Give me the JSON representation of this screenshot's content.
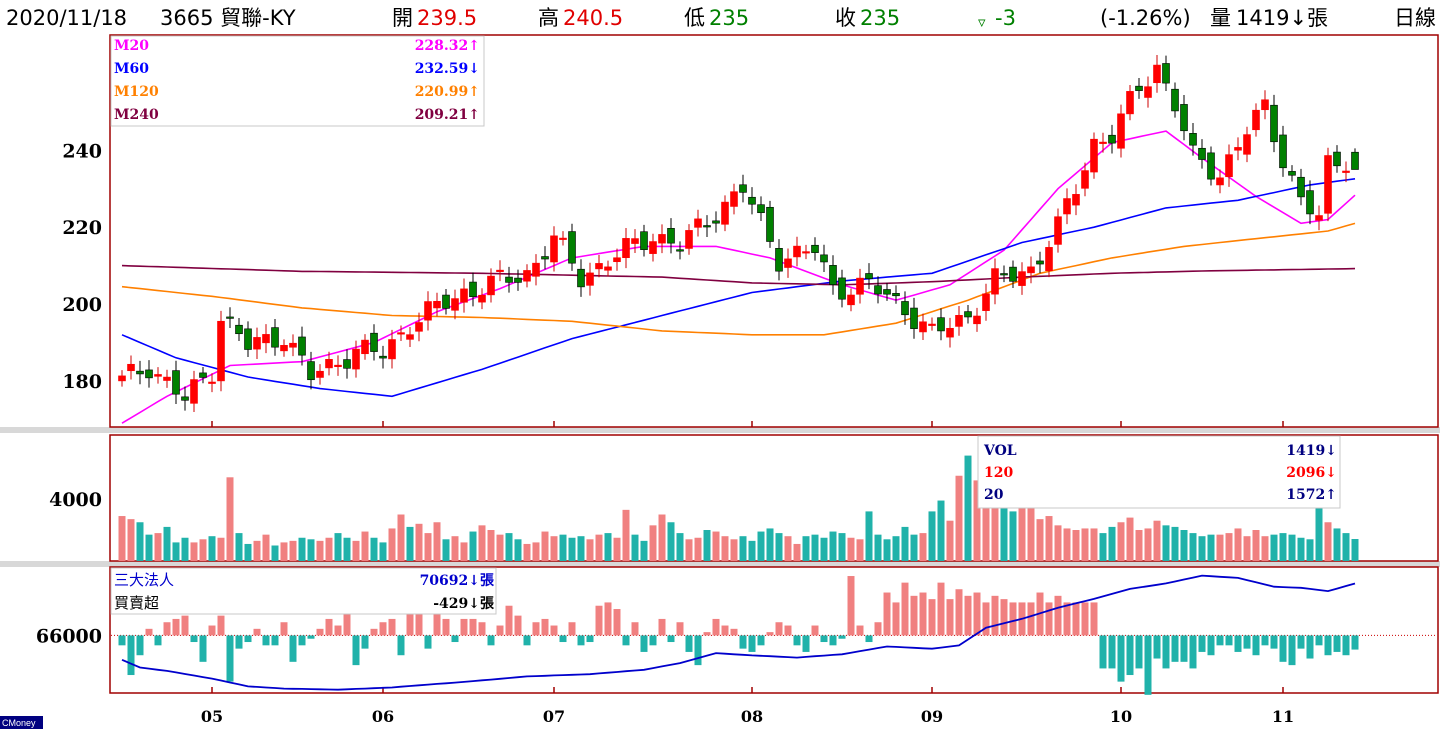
{
  "header": {
    "date": "2020/11/18",
    "stock": "3665 貿聯-KY",
    "open_label": "開",
    "open": "239.5",
    "high_label": "高",
    "high": "240.5",
    "low_label": "低",
    "low": "235",
    "close_label": "收",
    "close": "235",
    "change_symbol": "▿",
    "change": "-3",
    "change_pct": "(-1.26%)",
    "volume_label": "量",
    "volume": "1419↓張",
    "period": "日線"
  },
  "legends": {
    "price": [
      {
        "name": "M20",
        "value": "228.32↑",
        "color": "#ff00ff"
      },
      {
        "name": "M60",
        "value": "232.59↓",
        "color": "#0000ff"
      },
      {
        "name": "M120",
        "value": "220.99↑",
        "color": "#ff8000"
      },
      {
        "name": "M240",
        "value": "209.21↑",
        "color": "#800040"
      }
    ],
    "volume": [
      {
        "name": "VOL",
        "value": "1419↓",
        "color": "#000080"
      },
      {
        "name": "120",
        "value": "2096↓",
        "color": "#ff0000"
      },
      {
        "name": "20",
        "value": "1572↑",
        "color": "#000080"
      }
    ],
    "inst": [
      {
        "name": "三大法人",
        "value": "70692↓張",
        "color": "#0000cc"
      },
      {
        "name": "買賣超",
        "value": "-429↓張",
        "color": "#000000"
      }
    ]
  },
  "watermark": "CMoney",
  "colors": {
    "up": "#ff0000",
    "down": "#008000",
    "vol_up": "#f08080",
    "vol_down": "#20b2aa",
    "frame": "#a00000",
    "inst_line": "#0000cc"
  },
  "chart_data": [
    {
      "type": "candlestick",
      "title": "3665 貿聯-KY 日線",
      "x_ticks": [
        "05",
        "06",
        "07",
        "08",
        "09",
        "10",
        "11"
      ],
      "y_ticks": [
        180,
        200,
        220,
        240
      ],
      "ylim": [
        168,
        270
      ],
      "n_days": 138,
      "start_close": 180,
      "close_anchors": [
        [
          0,
          180
        ],
        [
          3,
          184
        ],
        [
          7,
          175
        ],
        [
          10,
          183
        ],
        [
          11,
          197
        ],
        [
          14,
          189
        ],
        [
          18,
          192
        ],
        [
          21,
          181
        ],
        [
          26,
          188
        ],
        [
          29,
          187
        ],
        [
          32,
          195
        ],
        [
          38,
          203
        ],
        [
          45,
          208
        ],
        [
          48,
          217
        ],
        [
          51,
          207
        ],
        [
          56,
          214
        ],
        [
          59,
          218
        ],
        [
          62,
          215
        ],
        [
          66,
          224
        ],
        [
          69,
          230
        ],
        [
          73,
          212
        ],
        [
          77,
          214
        ],
        [
          79,
          204
        ],
        [
          83,
          205
        ],
        [
          87,
          199
        ],
        [
          90,
          192
        ],
        [
          94,
          197
        ],
        [
          97,
          206
        ],
        [
          101,
          209
        ],
        [
          104,
          220
        ],
        [
          106,
          230
        ],
        [
          108,
          242
        ],
        [
          110,
          244
        ],
        [
          113,
          256
        ],
        [
          115,
          262
        ],
        [
          117,
          252
        ],
        [
          119,
          238
        ],
        [
          122,
          234
        ],
        [
          125,
          245
        ],
        [
          127,
          251
        ],
        [
          129,
          238
        ],
        [
          131,
          227
        ],
        [
          133,
          222
        ],
        [
          134,
          236
        ],
        [
          136,
          238
        ],
        [
          137,
          235
        ]
      ],
      "last_candle": {
        "open": 239.5,
        "high": 240.5,
        "low": 235,
        "close": 235
      },
      "moving_averages": [
        {
          "name": "M20",
          "last": 228.32,
          "anchors": [
            [
              0,
              169
            ],
            [
              5,
              176
            ],
            [
              12,
              184
            ],
            [
              20,
              185
            ],
            [
              28,
              190
            ],
            [
              35,
              198
            ],
            [
              42,
              204
            ],
            [
              50,
              212
            ],
            [
              58,
              215
            ],
            [
              66,
              215
            ],
            [
              72,
              212
            ],
            [
              80,
              205
            ],
            [
              86,
              201
            ],
            [
              92,
              205
            ],
            [
              98,
              214
            ],
            [
              104,
              230
            ],
            [
              110,
              242
            ],
            [
              116,
              245
            ],
            [
              120,
              238
            ],
            [
              126,
              228
            ],
            [
              131,
              221
            ],
            [
              134,
              222
            ],
            [
              137,
              228.32
            ]
          ]
        },
        {
          "name": "M60",
          "last": 232.59,
          "anchors": [
            [
              0,
              192
            ],
            [
              6,
              186
            ],
            [
              14,
              181
            ],
            [
              22,
              178
            ],
            [
              30,
              176
            ],
            [
              40,
              183
            ],
            [
              50,
              191
            ],
            [
              60,
              197
            ],
            [
              70,
              203
            ],
            [
              80,
              206
            ],
            [
              90,
              208
            ],
            [
              100,
              216
            ],
            [
              108,
              220
            ],
            [
              116,
              225
            ],
            [
              124,
              227
            ],
            [
              132,
              231
            ],
            [
              137,
              232.59
            ]
          ]
        },
        {
          "name": "M120",
          "last": 220.99,
          "anchors": [
            [
              0,
              204.5
            ],
            [
              10,
              202
            ],
            [
              20,
              199
            ],
            [
              30,
              197
            ],
            [
              40,
              196.5
            ],
            [
              50,
              195.5
            ],
            [
              60,
              193
            ],
            [
              70,
              192
            ],
            [
              78,
              192
            ],
            [
              86,
              195
            ],
            [
              94,
              201
            ],
            [
              102,
              208
            ],
            [
              110,
              212
            ],
            [
              118,
              215
            ],
            [
              126,
              217
            ],
            [
              130,
              218
            ],
            [
              134,
              219
            ],
            [
              137,
              220.99
            ]
          ]
        },
        {
          "name": "M240",
          "last": 209.21,
          "anchors": [
            [
              0,
              210
            ],
            [
              20,
              208.5
            ],
            [
              40,
              208
            ],
            [
              60,
              207
            ],
            [
              70,
              205.5
            ],
            [
              80,
              205
            ],
            [
              90,
              205.8
            ],
            [
              100,
              207
            ],
            [
              110,
              208
            ],
            [
              120,
              208.6
            ],
            [
              137,
              209.21
            ]
          ]
        }
      ]
    },
    {
      "type": "bar",
      "title": "VOL",
      "y_ticks": [
        4000
      ],
      "ylim": [
        0,
        8000
      ],
      "last": 1419,
      "series": [
        {
          "name": "VOL",
          "values": [
            2900,
            2700,
            2500,
            1700,
            1800,
            2200,
            1200,
            1500,
            1200,
            1400,
            1600,
            1500,
            5400,
            1800,
            1100,
            1300,
            1700,
            1000,
            1200,
            1300,
            1500,
            1400,
            1300,
            1500,
            1800,
            1500,
            1300,
            1900,
            1500,
            1200,
            2100,
            3000,
            2200,
            2400,
            1800,
            2500,
            1400,
            1600,
            1200,
            1900,
            2300,
            2000,
            1700,
            1800,
            1400,
            1100,
            1200,
            1900,
            1600,
            1700,
            1500,
            1600,
            1400,
            1700,
            1800,
            1500,
            3300,
            1700,
            1300,
            2300,
            3000,
            2500,
            1800,
            1400,
            1500,
            2000,
            1900,
            1600,
            1400,
            1600,
            1300,
            1900,
            2100,
            1800,
            1600,
            1100,
            1600,
            1700,
            1500,
            1900,
            1800,
            1500,
            1400,
            3200,
            1700,
            1400,
            1600,
            2200,
            1700,
            1800,
            3200,
            3900,
            2600,
            5500,
            6800,
            5200,
            4600,
            7600,
            4900,
            3200,
            5000,
            7000,
            2700,
            2900,
            2300,
            2100,
            2000,
            2100,
            2100,
            1800,
            2200,
            2500,
            2800,
            2000,
            2100,
            2600,
            2300,
            2200,
            2000,
            1800,
            1600,
            1700,
            1700,
            1800,
            2100,
            1600,
            2000,
            1600,
            1700,
            1800,
            1700,
            1500,
            1400,
            3800,
            2500,
            2100,
            1800,
            1419
          ]
        }
      ]
    },
    {
      "type": "bar",
      "title": "三大法人 / 買賣超",
      "y_ticks": [
        66000
      ],
      "inst_ylim": [
        60800,
        72000
      ],
      "net_ylim": [
        -2000,
        2000
      ],
      "inst_last": 70692,
      "net_last": -429,
      "series": [
        {
          "name": "三大法人",
          "type": "line",
          "anchors": [
            [
              0,
              63800
            ],
            [
              2,
              63100
            ],
            [
              5,
              62800
            ],
            [
              10,
              62100
            ],
            [
              14,
              61400
            ],
            [
              18,
              61200
            ],
            [
              24,
              61100
            ],
            [
              30,
              61300
            ],
            [
              33,
              61500
            ],
            [
              38,
              61800
            ],
            [
              45,
              62300
            ],
            [
              52,
              62500
            ],
            [
              58,
              62900
            ],
            [
              62,
              63500
            ],
            [
              66,
              64400
            ],
            [
              70,
              64200
            ],
            [
              75,
              64000
            ],
            [
              80,
              64300
            ],
            [
              85,
              65000
            ],
            [
              90,
              64800
            ],
            [
              93,
              65100
            ],
            [
              96,
              66700
            ],
            [
              100,
              67500
            ],
            [
              104,
              68500
            ],
            [
              108,
              69300
            ],
            [
              112,
              70200
            ],
            [
              116,
              70700
            ],
            [
              120,
              71400
            ],
            [
              124,
              71200
            ],
            [
              128,
              70400
            ],
            [
              131,
              70300
            ],
            [
              134,
              70000
            ],
            [
              137,
              70692
            ]
          ]
        },
        {
          "name": "買賣超",
          "type": "bar",
          "values": [
            -300,
            -1200,
            -600,
            200,
            -300,
            400,
            500,
            600,
            -200,
            -800,
            300,
            600,
            -1400,
            -400,
            -200,
            200,
            -300,
            -300,
            400,
            -800,
            -300,
            -100,
            200,
            500,
            300,
            700,
            -900,
            -400,
            200,
            400,
            500,
            -600,
            1100,
            1200,
            -400,
            900,
            500,
            -200,
            500,
            500,
            400,
            -300,
            300,
            900,
            600,
            -300,
            400,
            500,
            300,
            -200,
            400,
            -300,
            -200,
            900,
            1000,
            800,
            -300,
            400,
            -500,
            -300,
            500,
            -200,
            400,
            -500,
            -900,
            100,
            500,
            300,
            200,
            -400,
            -500,
            -300,
            100,
            400,
            300,
            -300,
            -500,
            300,
            -200,
            -300,
            -100,
            1800,
            300,
            -200,
            400,
            1300,
            1000,
            1600,
            1200,
            1300,
            1100,
            1600,
            1100,
            1400,
            1200,
            1300,
            1000,
            1200,
            1100,
            1000,
            1000,
            1000,
            1300,
            1000,
            1200,
            1000,
            1000,
            1000,
            1000,
            -1000,
            -1000,
            -1400,
            -1200,
            -1000,
            -1800,
            -700,
            -1000,
            -800,
            -800,
            -1000,
            -500,
            -600,
            -300,
            -300,
            -500,
            -400,
            -600,
            -300,
            -400,
            -800,
            -900,
            -400,
            -700,
            -300,
            -600,
            -500,
            -600,
            -429
          ]
        }
      ]
    }
  ]
}
